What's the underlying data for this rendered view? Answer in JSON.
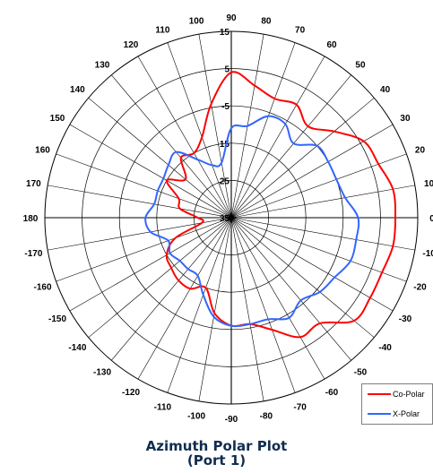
{
  "chart_data": {
    "type": "polar-line",
    "title": "Azimuth Polar Plot",
    "subtitle": "(Port 1)",
    "angle_labels": [
      "90",
      "80",
      "70",
      "60",
      "50",
      "40",
      "30",
      "20",
      "10",
      "0",
      "-10",
      "-20",
      "-30",
      "-40",
      "-50",
      "-60",
      "-70",
      "-80",
      "-90",
      "-100",
      "-110",
      "-120",
      "-130",
      "-140",
      "-150",
      "-160",
      "-170",
      "180",
      "170",
      "160",
      "150",
      "140",
      "130",
      "120",
      "110",
      "100"
    ],
    "radial_labels": [
      "15",
      "5",
      "-5",
      "15",
      "25",
      "35"
    ],
    "radial_range_db": [
      -35,
      15
    ],
    "grid": true,
    "legend_position": "bottom-right",
    "series": [
      {
        "name": "Co-Polar",
        "color": "#ff0000",
        "angles": [
          -180,
          -170,
          -160,
          -150,
          -140,
          -130,
          -120,
          -110,
          -100,
          -90,
          -80,
          -70,
          -60,
          -50,
          -40,
          -30,
          -20,
          -10,
          0,
          10,
          20,
          30,
          40,
          50,
          60,
          70,
          80,
          90,
          100,
          110,
          120,
          130,
          140,
          150,
          160,
          170,
          180
        ],
        "values_db": [
          -26,
          -27,
          -19,
          -15,
          -14,
          -13,
          -13,
          -15,
          -9,
          -6,
          -6,
          -3,
          2,
          2,
          8,
          8,
          8,
          9,
          9,
          9,
          7,
          6,
          1,
          -3,
          0,
          -1,
          1,
          4,
          -4,
          -12,
          -15,
          -14,
          -19,
          -15,
          -20,
          -21,
          -26
        ]
      },
      {
        "name": "X-Polar",
        "color": "#3366ff",
        "angles": [
          -180,
          -170,
          -160,
          -150,
          -140,
          -130,
          -120,
          -110,
          -100,
          -90,
          -80,
          -70,
          -60,
          -50,
          -40,
          -30,
          -20,
          -10,
          0,
          10,
          20,
          30,
          40,
          50,
          60,
          70,
          80,
          90,
          100,
          110,
          120,
          130,
          140,
          150,
          160,
          170,
          180
        ],
        "values_db": [
          -12,
          -13,
          -17,
          -16,
          -17,
          -17,
          -17,
          -13,
          -8,
          -6,
          -6,
          -6,
          -4,
          -6,
          -4,
          -3,
          -1,
          -1,
          -1,
          -4,
          -5,
          -5,
          -5,
          -9,
          -6,
          -6,
          -10,
          -11,
          -20,
          -20,
          -17,
          -12,
          -13,
          -14,
          -14,
          -14,
          -12
        ]
      }
    ]
  }
}
